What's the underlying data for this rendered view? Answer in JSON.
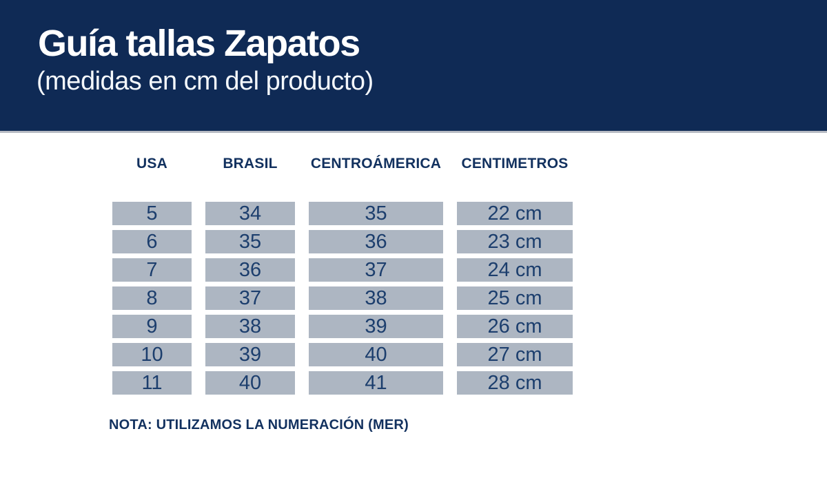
{
  "header": {
    "title": "Guía tallas Zapatos",
    "subtitle": "(medidas en cm del producto)"
  },
  "table": {
    "headers": [
      "USA",
      "BRASIL",
      "CENTROÁMERICA",
      "CENTIMETROS"
    ],
    "rows": [
      [
        "5",
        "34",
        "35",
        "22 cm"
      ],
      [
        "6",
        "35",
        "36",
        "23 cm"
      ],
      [
        "7",
        "36",
        "37",
        "24 cm"
      ],
      [
        "8",
        "37",
        "38",
        "25 cm"
      ],
      [
        "9",
        "38",
        "39",
        "26 cm"
      ],
      [
        "10",
        "39",
        "40",
        "27 cm"
      ],
      [
        "11",
        "40",
        "41",
        "28 cm"
      ]
    ]
  },
  "note": "NOTA: UTILIZAMOS LA NUMERACIÓN (MER)",
  "colors": {
    "band": "#0F2A55",
    "separator": "#B7BBC3",
    "heading_text": "#12315F",
    "cell_bg": "#ADB6C2",
    "cell_text": "#1C3E6D",
    "page_bg": "#FFFFFF",
    "title_text": "#FFFFFF"
  }
}
